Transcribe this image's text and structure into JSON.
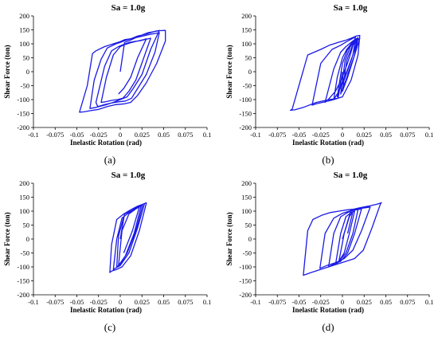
{
  "chart_data": [
    {
      "type": "line",
      "panel_label": "(a)",
      "title": "Sa = 1.0g",
      "xlabel": "Inelastic Rotation (rad)",
      "ylabel": "Shear Force (ton)",
      "xlim": [
        -0.1,
        0.1
      ],
      "ylim": [
        -200,
        200
      ],
      "x_ticks": [
        "-0.1",
        "-0.075",
        "-0.05",
        "-0.025",
        "0",
        "0.025",
        "0.05",
        "0.075",
        "0.1"
      ],
      "y_ticks": [
        "200",
        "150",
        "100",
        "50",
        "0",
        "-50",
        "-100",
        "-150",
        "-200"
      ],
      "grid": false,
      "series_color": "#1a1ae6",
      "series": [
        {
          "x": [
            0,
            0.005,
            0.013,
            0.022,
            0.032,
            0.045,
            0.052,
            0.052,
            0.042,
            0.03,
            0.02,
            0.012,
            0.005,
            -0.005,
            -0.015,
            -0.025,
            -0.035,
            -0.042,
            -0.047,
            -0.038,
            -0.032,
            -0.028,
            -0.018,
            -0.008,
            0,
            0.005,
            0.012,
            0.02,
            0.03,
            0.04,
            0.045,
            0.035,
            0.025,
            0.015,
            0.008,
            0,
            -0.008,
            -0.018,
            -0.028,
            -0.035,
            -0.03,
            -0.022,
            -0.015,
            -0.005,
            0,
            0.004,
            0.01,
            0.018,
            0.026,
            0.036,
            0.045,
            0.04,
            0.03,
            0.02,
            0.013,
            0.006,
            -0.002,
            -0.01,
            -0.018,
            -0.026,
            -0.028,
            -0.018,
            -0.01,
            -0.002,
            0.004,
            0.01,
            0.016,
            0.024,
            0.032,
            0.035,
            0.026,
            0.018,
            0.01,
            0.003,
            -0.003,
            -0.01,
            -0.017,
            -0.022,
            -0.016,
            -0.008,
            0,
            0.006,
            0.012,
            0.02,
            0.027,
            0.03,
            0.02,
            0.012,
            0.004,
            -0.002
          ],
          "y": [
            0,
            105,
            115,
            128,
            140,
            147,
            148,
            110,
            30,
            -40,
            -85,
            -110,
            -115,
            -118,
            -125,
            -135,
            -140,
            -144,
            -145,
            -50,
            65,
            75,
            90,
            100,
            108,
            115,
            118,
            128,
            135,
            145,
            148,
            80,
            -10,
            -60,
            -90,
            -100,
            -110,
            -120,
            -128,
            -132,
            -30,
            45,
            85,
            100,
            105,
            110,
            116,
            122,
            128,
            135,
            140,
            70,
            -10,
            -60,
            -95,
            -105,
            -108,
            -112,
            -118,
            -125,
            -110,
            20,
            75,
            90,
            98,
            105,
            108,
            112,
            118,
            120,
            40,
            -30,
            -70,
            -95,
            -100,
            -103,
            -108,
            -110,
            -20,
            60,
            90,
            98,
            104,
            110,
            115,
            118,
            50,
            -20,
            -60,
            -80
          ]
        }
      ]
    },
    {
      "type": "line",
      "panel_label": "(b)",
      "title": "Sa = 1.0g",
      "xlabel": "Inelastic Rotation (rad)",
      "ylabel": "Shear Force (ton)",
      "xlim": [
        -0.1,
        0.1
      ],
      "ylim": [
        -200,
        200
      ],
      "x_ticks": [
        "-0.1",
        "-0.075",
        "-0.05",
        "-0.025",
        "0",
        "0.025",
        "0.05",
        "0.075",
        "0.1"
      ],
      "y_ticks": [
        "200",
        "150",
        "100",
        "50",
        "0",
        "-50",
        "-100",
        "-150",
        "-200"
      ],
      "grid": false,
      "series_color": "#1a1ae6",
      "series": [
        {
          "x": [
            0,
            -0.005,
            -0.015,
            -0.03,
            -0.045,
            -0.055,
            -0.06,
            -0.058,
            -0.04,
            -0.025,
            -0.015,
            -0.005,
            0.003,
            0.01,
            0.016,
            0.02,
            0.018,
            0.01,
            0,
            -0.01,
            -0.02,
            -0.03,
            -0.035,
            -0.025,
            -0.012,
            -0.002,
            0.005,
            0.012,
            0.015,
            0.008,
            0,
            -0.008,
            -0.015,
            -0.02,
            -0.01,
            -0.002,
            0.004,
            0.01,
            0.014,
            0.018,
            0.01,
            0.002,
            -0.004,
            -0.01,
            -0.006,
            0,
            0.005,
            0.01,
            0.015,
            0.012,
            0.005,
            -0.002,
            -0.006,
            0,
            0.006,
            0.012,
            0.018,
            0.02,
            0.012,
            0.004,
            -0.002,
            0.003,
            0.009,
            0.014,
            0.018,
            0.013,
            0.006,
            0,
            0.005,
            0.011,
            0.016,
            0.014,
            0.006
          ],
          "y": [
            0,
            -95,
            -100,
            -110,
            -128,
            -137,
            -138,
            -135,
            60,
            80,
            95,
            105,
            112,
            120,
            128,
            130,
            60,
            -30,
            -90,
            -100,
            -108,
            -115,
            -120,
            30,
            80,
            95,
            108,
            120,
            125,
            50,
            -20,
            -70,
            -95,
            -110,
            10,
            70,
            90,
            105,
            115,
            122,
            40,
            -30,
            -70,
            -100,
            -20,
            50,
            80,
            100,
            115,
            60,
            0,
            -50,
            -90,
            30,
            80,
            100,
            115,
            120,
            40,
            -30,
            -80,
            40,
            90,
            110,
            118,
            50,
            -20,
            -70,
            40,
            90,
            112,
            60,
            -10
          ]
        }
      ]
    },
    {
      "type": "line",
      "panel_label": "(c)",
      "title": "Sa = 1.0g",
      "xlabel": "Inelastic Rotation (rad)",
      "ylabel": "Shear Force (ton)",
      "xlim": [
        -0.1,
        0.1
      ],
      "ylim": [
        -200,
        200
      ],
      "x_ticks": [
        "-0.1",
        "-0.075",
        "-0.05",
        "-0.025",
        "0",
        "0.025",
        "0.05",
        "0.075",
        "0.1"
      ],
      "y_ticks": [
        "200",
        "150",
        "100",
        "50",
        "0",
        "-50",
        "-100",
        "-150",
        "-200"
      ],
      "grid": false,
      "series_color": "#1a1ae6",
      "series": [
        {
          "x": [
            0,
            0.005,
            0.012,
            0.02,
            0.026,
            0.03,
            0.03,
            0.022,
            0.012,
            0.002,
            -0.005,
            -0.01,
            -0.012,
            -0.01,
            -0.004,
            0.004,
            0.012,
            0.02,
            0.026,
            0.028,
            0.02,
            0.01,
            0,
            -0.006,
            -0.008,
            -0.004,
            0.002,
            0.01,
            0.018,
            0.024,
            0.026,
            0.018,
            0.008,
            0,
            -0.004,
            -0.002,
            0.004,
            0.012,
            0.02,
            0.024,
            0.016,
            0.006,
            -0.002,
            0.002,
            0.01,
            0.018,
            0.022,
            0.014,
            0.004
          ],
          "y": [
            0,
            90,
            100,
            115,
            125,
            130,
            128,
            30,
            -60,
            -100,
            -110,
            -115,
            -120,
            -20,
            70,
            90,
            105,
            118,
            125,
            127,
            40,
            -50,
            -95,
            -105,
            -110,
            0,
            75,
            95,
            110,
            120,
            122,
            30,
            -50,
            -90,
            -100,
            10,
            80,
            100,
            112,
            118,
            20,
            -60,
            -95,
            30,
            90,
            108,
            115,
            30,
            -50
          ]
        }
      ]
    },
    {
      "type": "line",
      "panel_label": "(d)",
      "title": "Sa = 1.0g",
      "xlabel": "Inelastic Rotation (rad)",
      "ylabel": "Shear Force (ton)",
      "xlim": [
        -0.1,
        0.1
      ],
      "ylim": [
        -200,
        200
      ],
      "x_ticks": [
        "-0.1",
        "-0.075",
        "-0.05",
        "-0.025",
        "0",
        "0.025",
        "0.05",
        "0.075",
        "0.1"
      ],
      "y_ticks": [
        "200",
        "150",
        "100",
        "50",
        "0",
        "-50",
        "-100",
        "-150",
        "-200"
      ],
      "grid": false,
      "series_color": "#1a1ae6",
      "series": [
        {
          "x": [
            0,
            0.01,
            0.02,
            0.03,
            0.04,
            0.045,
            0.044,
            0.034,
            0.024,
            0.014,
            0.004,
            -0.006,
            -0.016,
            -0.026,
            -0.036,
            -0.042,
            -0.045,
            -0.04,
            -0.034,
            -0.024,
            -0.014,
            -0.004,
            0.006,
            0.016,
            0.026,
            0.032,
            0.022,
            0.012,
            0.002,
            -0.008,
            -0.018,
            -0.026,
            -0.02,
            -0.01,
            0,
            0.008,
            0.016,
            0.022,
            0.014,
            0.006,
            -0.002,
            -0.01,
            -0.016,
            -0.01,
            -0.002,
            0.006,
            0.012,
            0.018,
            0.012,
            0.004,
            -0.004,
            -0.008,
            -0.002,
            0.004,
            0.01,
            0.014,
            0.008,
            0.002,
            -0.004,
            0.002,
            0.008,
            0.012,
            0.006
          ],
          "y": [
            0,
            105,
            112,
            118,
            125,
            130,
            128,
            40,
            -40,
            -70,
            -80,
            -90,
            -100,
            -110,
            -120,
            -127,
            -130,
            30,
            70,
            85,
            95,
            100,
            105,
            108,
            112,
            115,
            30,
            -40,
            -70,
            -85,
            -95,
            -105,
            20,
            75,
            92,
            100,
            105,
            108,
            20,
            -50,
            -80,
            -90,
            -100,
            20,
            80,
            95,
            102,
            106,
            20,
            -50,
            -80,
            -92,
            20,
            80,
            95,
            100,
            20,
            -50,
            -80,
            20,
            80,
            98,
            20
          ]
        }
      ]
    }
  ]
}
